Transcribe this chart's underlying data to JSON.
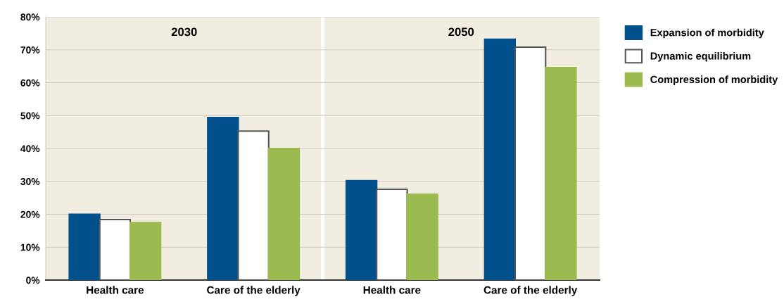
{
  "chart_data": {
    "type": "bar",
    "categories": [
      "Health care",
      "Care of the elderly",
      "Health care",
      "Care of the elderly"
    ],
    "series": [
      {
        "name": "Expansion of morbidity",
        "color": "#00508c",
        "values": [
          20,
          49.4,
          30.2,
          73.2
        ]
      },
      {
        "name": "Dynamic equilibrium",
        "color": "#ffffff",
        "values": [
          18.4,
          45.3,
          27.6,
          70.8
        ]
      },
      {
        "name": "Compression of morbidity",
        "color": "#9bbb50",
        "values": [
          17.5,
          40,
          26.1,
          64.6
        ]
      }
    ],
    "ylim": [
      0,
      80
    ],
    "yticks": [
      {
        "value": 0,
        "label": "0%"
      },
      {
        "value": 10,
        "label": "10%"
      },
      {
        "value": 20,
        "label": "20%"
      },
      {
        "value": 30,
        "label": "30%"
      },
      {
        "value": 40,
        "label": "40%"
      },
      {
        "value": 50,
        "label": "50%"
      },
      {
        "value": 60,
        "label": "60%"
      },
      {
        "value": 70,
        "label": "70%"
      },
      {
        "value": 80,
        "label": "80%"
      }
    ],
    "annotations": [
      "2030",
      "2050"
    ],
    "grid": "y",
    "legend": "top right"
  }
}
